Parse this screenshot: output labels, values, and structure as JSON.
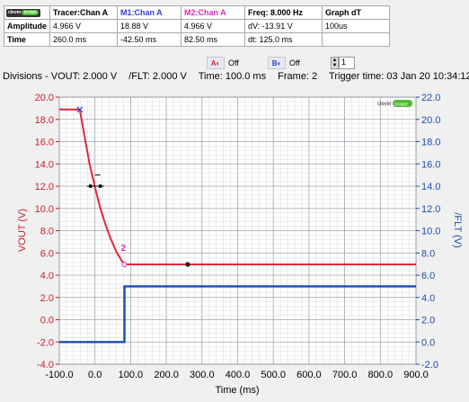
{
  "table": {
    "logo_text": "clever",
    "logo_accent": "scope",
    "headers": {
      "tracer": "Tracer:Chan A",
      "m1": "M1:Chan A",
      "m2": "M2:Chan A",
      "freq": "Freq: 8.000 Hz",
      "graph": "Graph dT"
    },
    "rows": [
      {
        "label": "Amplitude",
        "tracer": "4.966 V",
        "m1": "18.88 V",
        "m2": "4.966 V",
        "freq": "dV: -13.91 V",
        "graph": "100us"
      },
      {
        "label": "Time",
        "tracer": "260.0 ms",
        "m1": "-42.50 ms",
        "m2": "82.50 ms",
        "freq": "dt:  125.0 ms",
        "graph": ""
      }
    ]
  },
  "cursor_controls": {
    "a_label": "A",
    "a_state": "Off",
    "b_label": "B",
    "b_state": "Off",
    "spin_value": "1"
  },
  "info": {
    "divisions": "Divisions -  VOUT: 2.000 V",
    "flt": "/FLT: 2.000 V",
    "time": "Time: 100.0 ms",
    "frame": "Frame: 2",
    "trigger": "Trigger time: 03 Jan 20 10:34:12"
  },
  "plot": {
    "watermark_text": "clever",
    "watermark_accent": "scope",
    "marker_2_label": "2",
    "ylabel_left": "VOUT (V)",
    "ylabel_right": "/FLT (V)",
    "xlabel": "Time (ms)"
  },
  "colors": {
    "vout": "#e0283c",
    "flt": "#1a4fa8",
    "marker2": "#d62fb4",
    "grid_major": "#9aa4ad",
    "grid_minor": "#d5dade"
  },
  "chart_data": {
    "type": "line",
    "xlabel": "Time (ms)",
    "ylabel": "VOUT (V)",
    "y2label": "/FLT (V)",
    "xlim": [
      -100,
      900
    ],
    "ylim": [
      -4,
      20
    ],
    "y2lim": [
      -2,
      22
    ],
    "x_ticks": [
      "-100.0",
      "0.0",
      "100.0",
      "200.0",
      "300.0",
      "400.0",
      "500.0",
      "600.0",
      "700.0",
      "800.0",
      "900.0"
    ],
    "y_ticks": [
      "-4.0",
      "-2.0",
      "0.0",
      "2.0",
      "4.0",
      "6.0",
      "8.0",
      "10.0",
      "12.0",
      "14.0",
      "16.0",
      "18.0",
      "20.0"
    ],
    "y2_ticks": [
      "-2.0",
      "0.0",
      "2.0",
      "4.0",
      "6.0",
      "8.0",
      "10.0",
      "12.0",
      "14.0",
      "16.0",
      "18.0",
      "20.0",
      "22.0"
    ],
    "grid": true,
    "series": [
      {
        "axis": "left",
        "x": [
          -100,
          -42.5,
          -30,
          -15,
          0,
          15,
          30,
          45,
          60,
          75,
          82.5,
          900
        ],
        "y": [
          18.9,
          18.88,
          16.6,
          14.0,
          11.9,
          10.0,
          8.5,
          7.2,
          6.1,
          5.3,
          4.97,
          4.97
        ]
      },
      {
        "axis": "right",
        "x": [
          -100,
          82.5,
          82.5,
          900
        ],
        "y": [
          0.0,
          0.0,
          5.0,
          5.0
        ]
      }
    ]
  }
}
